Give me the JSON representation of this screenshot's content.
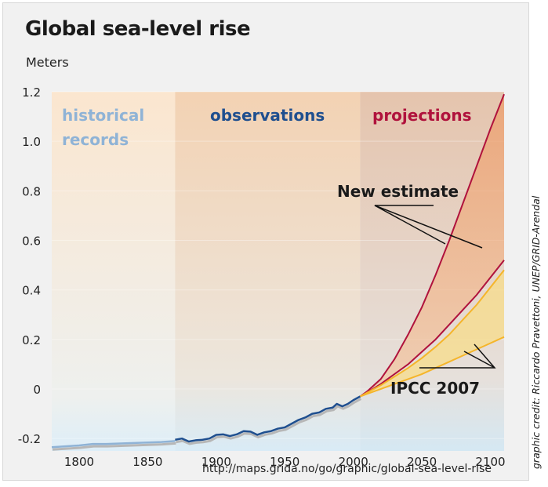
{
  "title": "Global sea-level rise",
  "unit_label": "Meters",
  "credit": "graphic credit: Riccardo Pravettoni, UNEP/GRID-Arendal",
  "url": "http://maps.grida.no/go/graphic/global-sea-level-rise",
  "colors": {
    "historical": "#8fb3d6",
    "observations": "#1f4f8f",
    "projections": "#b0123c",
    "ipcc": "#f5b52a",
    "text": "#1a1a1a"
  },
  "chart_data": {
    "type": "line",
    "xlim": [
      1780,
      2110
    ],
    "ylim": [
      -0.25,
      1.2
    ],
    "x_ticks": [
      1800,
      1850,
      1900,
      1950,
      2000,
      2050,
      2100
    ],
    "x_tick_labels": [
      "1800",
      "1850",
      "1900",
      "1950",
      "2000",
      "2050",
      "2100"
    ],
    "y_ticks": [
      -0.2,
      0,
      0.2,
      0.4,
      0.6,
      0.8,
      1.0,
      1.2
    ],
    "y_tick_labels": [
      "-0.2",
      "0",
      "0.2",
      "0.4",
      "0.6",
      "0.8",
      "1.0",
      "1.2"
    ],
    "regions": [
      {
        "label_lines": [
          "historical",
          "records"
        ],
        "x": [
          1780,
          1870
        ]
      },
      {
        "label_lines": [
          "observations"
        ],
        "x": [
          1870,
          2005
        ]
      },
      {
        "label_lines": [
          "projections"
        ],
        "x": [
          2005,
          2110
        ]
      }
    ],
    "series": [
      {
        "role": "historical",
        "x": [
          1780,
          1800,
          1810,
          1820,
          1830,
          1840,
          1850,
          1860,
          1870
        ],
        "y": [
          -0.235,
          -0.228,
          -0.222,
          -0.222,
          -0.22,
          -0.218,
          -0.216,
          -0.214,
          -0.21
        ]
      },
      {
        "role": "observations",
        "x": [
          1870,
          1875,
          1880,
          1885,
          1890,
          1895,
          1900,
          1905,
          1910,
          1915,
          1920,
          1925,
          1930,
          1935,
          1940,
          1945,
          1950,
          1955,
          1960,
          1965,
          1970,
          1975,
          1980,
          1985,
          1988,
          1992,
          1996,
          2000,
          2005
        ],
        "y": [
          -0.205,
          -0.2,
          -0.212,
          -0.207,
          -0.205,
          -0.2,
          -0.185,
          -0.183,
          -0.19,
          -0.183,
          -0.17,
          -0.172,
          -0.185,
          -0.175,
          -0.17,
          -0.16,
          -0.155,
          -0.14,
          -0.125,
          -0.115,
          -0.1,
          -0.095,
          -0.08,
          -0.075,
          -0.06,
          -0.07,
          -0.06,
          -0.045,
          -0.03
        ]
      }
    ],
    "projection_bands": [
      {
        "name": "New estimate",
        "x": [
          2005,
          2010,
          2020,
          2030,
          2040,
          2050,
          2060,
          2070,
          2080,
          2090,
          2100,
          2110
        ],
        "upper": [
          -0.03,
          -0.01,
          0.04,
          0.12,
          0.22,
          0.33,
          0.46,
          0.6,
          0.75,
          0.9,
          1.05,
          1.19
        ],
        "lower": [
          -0.03,
          -0.015,
          0.02,
          0.06,
          0.1,
          0.15,
          0.2,
          0.26,
          0.32,
          0.38,
          0.45,
          0.52
        ]
      },
      {
        "name": "IPCC 2007",
        "x": [
          2005,
          2010,
          2020,
          2030,
          2040,
          2050,
          2060,
          2070,
          2080,
          2090,
          2100,
          2110
        ],
        "upper": [
          -0.03,
          -0.015,
          0.015,
          0.05,
          0.085,
          0.125,
          0.17,
          0.22,
          0.28,
          0.34,
          0.41,
          0.48
        ],
        "lower": [
          -0.03,
          -0.02,
          0.0,
          0.02,
          0.04,
          0.06,
          0.085,
          0.11,
          0.135,
          0.16,
          0.185,
          0.21
        ]
      }
    ]
  }
}
